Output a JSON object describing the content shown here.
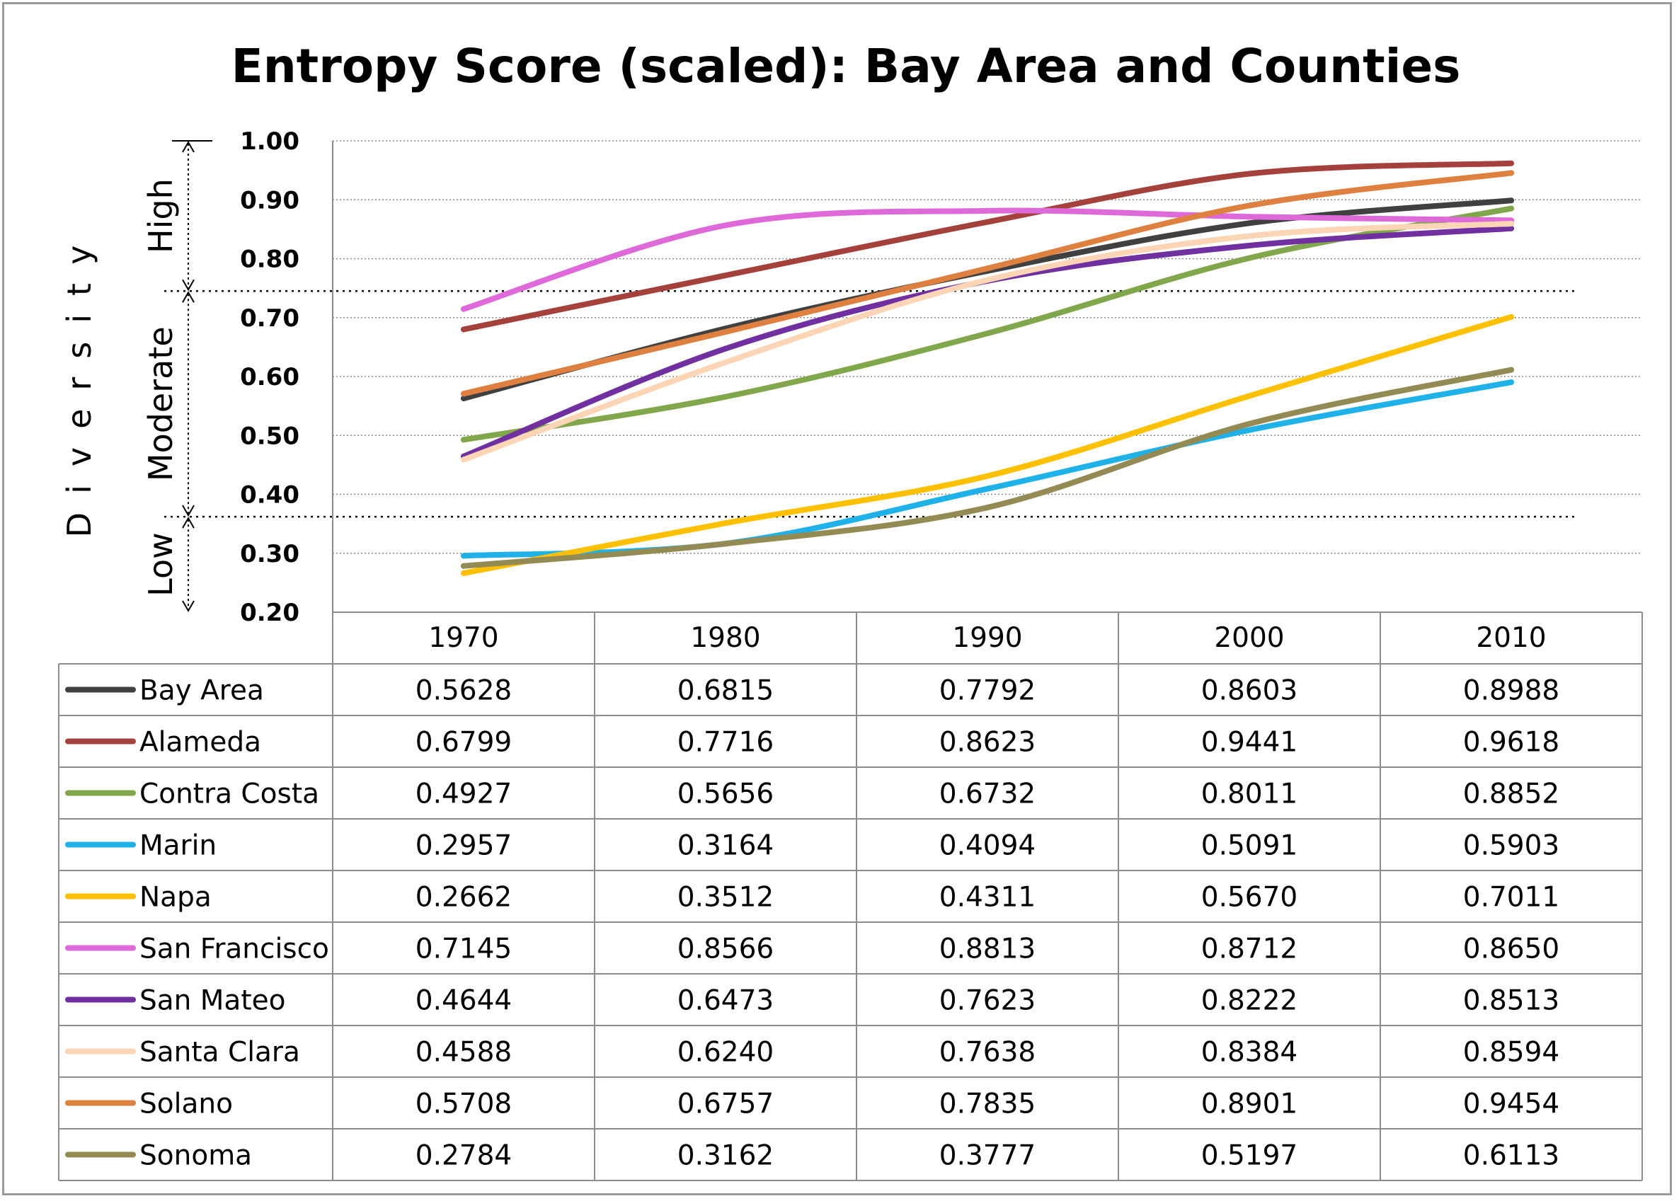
{
  "chart_data": {
    "type": "line",
    "title": "Entropy Score (scaled): Bay Area and Counties",
    "ylabel": "Diversity",
    "ylim": [
      0.2,
      1.0
    ],
    "yticks": [
      "0.20",
      "0.30",
      "0.40",
      "0.50",
      "0.60",
      "0.70",
      "0.80",
      "0.90",
      "1.00"
    ],
    "categories": [
      "1970",
      "1980",
      "1990",
      "2000",
      "2010"
    ],
    "grid": true,
    "legend": "data-table-below",
    "bands": [
      {
        "label": "Low",
        "from": 0.2,
        "to": 0.362
      },
      {
        "label": "Moderate",
        "from": 0.362,
        "to": 0.745
      },
      {
        "label": "High",
        "from": 0.745,
        "to": 1.0
      }
    ],
    "series": [
      {
        "name": "Bay Area",
        "color": "#404040",
        "values": [
          0.5628,
          0.6815,
          0.7792,
          0.8603,
          0.8988
        ],
        "labels": [
          "0.5628",
          "0.6815",
          "0.7792",
          "0.8603",
          "0.8988"
        ]
      },
      {
        "name": "Alameda",
        "color": "#a5413d",
        "values": [
          0.6799,
          0.7716,
          0.8623,
          0.9441,
          0.9618
        ],
        "labels": [
          "0.6799",
          "0.7716",
          "0.8623",
          "0.9441",
          "0.9618"
        ]
      },
      {
        "name": "Contra Costa",
        "color": "#82a64c",
        "values": [
          0.4927,
          0.5656,
          0.6732,
          0.8011,
          0.8852
        ],
        "labels": [
          "0.4927",
          "0.5656",
          "0.6732",
          "0.8011",
          "0.8852"
        ]
      },
      {
        "name": "Marin",
        "color": "#1fb1e8",
        "values": [
          0.2957,
          0.3164,
          0.4094,
          0.5091,
          0.5903
        ],
        "labels": [
          "0.2957",
          "0.3164",
          "0.4094",
          "0.5091",
          "0.5903"
        ]
      },
      {
        "name": "Napa",
        "color": "#ffc000",
        "values": [
          0.2662,
          0.3512,
          0.4311,
          0.567,
          0.7011
        ],
        "labels": [
          "0.2662",
          "0.3512",
          "0.4311",
          "0.5670",
          "0.7011"
        ]
      },
      {
        "name": "San Francisco",
        "color": "#dd6ad8",
        "values": [
          0.7145,
          0.8566,
          0.8813,
          0.8712,
          0.865
        ],
        "labels": [
          "0.7145",
          "0.8566",
          "0.8813",
          "0.8712",
          "0.8650"
        ]
      },
      {
        "name": "San Mateo",
        "color": "#7030a0",
        "values": [
          0.4644,
          0.6473,
          0.7623,
          0.8222,
          0.8513
        ],
        "labels": [
          "0.4644",
          "0.6473",
          "0.7623",
          "0.8222",
          "0.8513"
        ]
      },
      {
        "name": "Santa Clara",
        "color": "#fbd5b5",
        "values": [
          0.4588,
          0.624,
          0.7638,
          0.8384,
          0.8594
        ],
        "labels": [
          "0.4588",
          "0.6240",
          "0.7638",
          "0.8384",
          "0.8594"
        ]
      },
      {
        "name": "Solano",
        "color": "#dd8040",
        "values": [
          0.5708,
          0.6757,
          0.7835,
          0.8901,
          0.9454
        ],
        "labels": [
          "0.5708",
          "0.6757",
          "0.7835",
          "0.8901",
          "0.9454"
        ]
      },
      {
        "name": "Sonoma",
        "color": "#948a54",
        "values": [
          0.2784,
          0.3162,
          0.3777,
          0.5197,
          0.6113
        ],
        "labels": [
          "0.2784",
          "0.3162",
          "0.3777",
          "0.5197",
          "0.6113"
        ]
      }
    ]
  }
}
